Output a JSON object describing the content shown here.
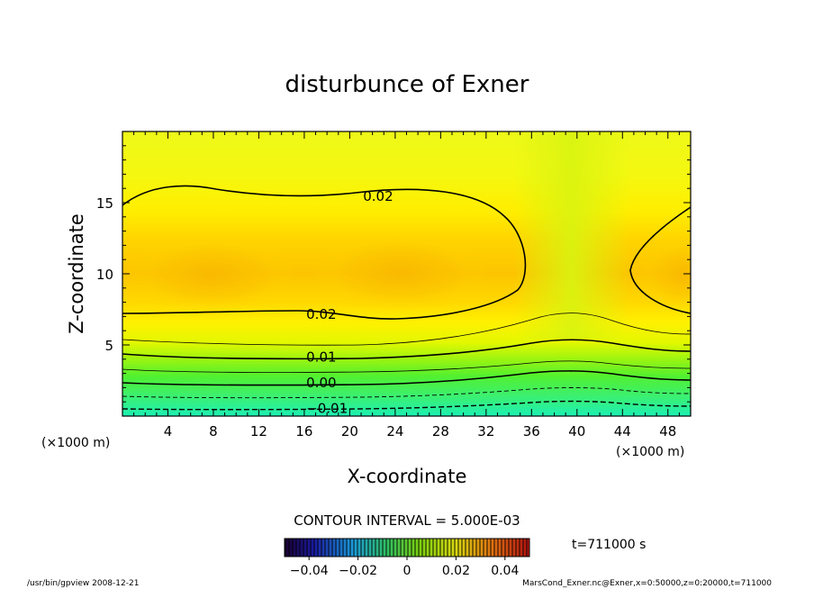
{
  "chart_data": {
    "type": "heatmap",
    "title": "disturbunce of Exner",
    "xlabel": "X-coordinate",
    "ylabel": "Z-coordinate",
    "x_unit": "(×1000 m)",
    "y_unit": "(×1000 m)",
    "xlim": [
      0,
      50
    ],
    "ylim": [
      0,
      20
    ],
    "x_ticks": [
      4,
      8,
      12,
      16,
      20,
      24,
      28,
      32,
      36,
      40,
      44,
      48
    ],
    "y_ticks": [
      5,
      10,
      15
    ],
    "contour_labels": [
      {
        "text": "0.02",
        "x": 22.5,
        "z": 15.5
      },
      {
        "text": "0.02",
        "x": 17.5,
        "z": 7.2
      },
      {
        "text": "0.01",
        "x": 17.5,
        "z": 4.2
      },
      {
        "text": "0.00",
        "x": 17.5,
        "z": 2.4
      },
      {
        "text": "−0.01",
        "x": 18.0,
        "z": 0.6
      }
    ],
    "contour_interval_text": "CONTOUR INTERVAL = 5.000E-03",
    "colorbar": {
      "range": [
        -0.05,
        0.05
      ],
      "tick_labels": [
        "−0.04",
        "−0.02",
        "0",
        "0.02",
        "0.04"
      ],
      "tick_values": [
        -0.04,
        -0.02,
        0,
        0.02,
        0.04
      ]
    },
    "time_text": "t=711000 s",
    "footer_left": "/usr/bin/gpview   2008-12-21",
    "footer_right": "MarsCond_Exner.nc@Exner,x=0:50000,z=0:20000,t=711000"
  }
}
